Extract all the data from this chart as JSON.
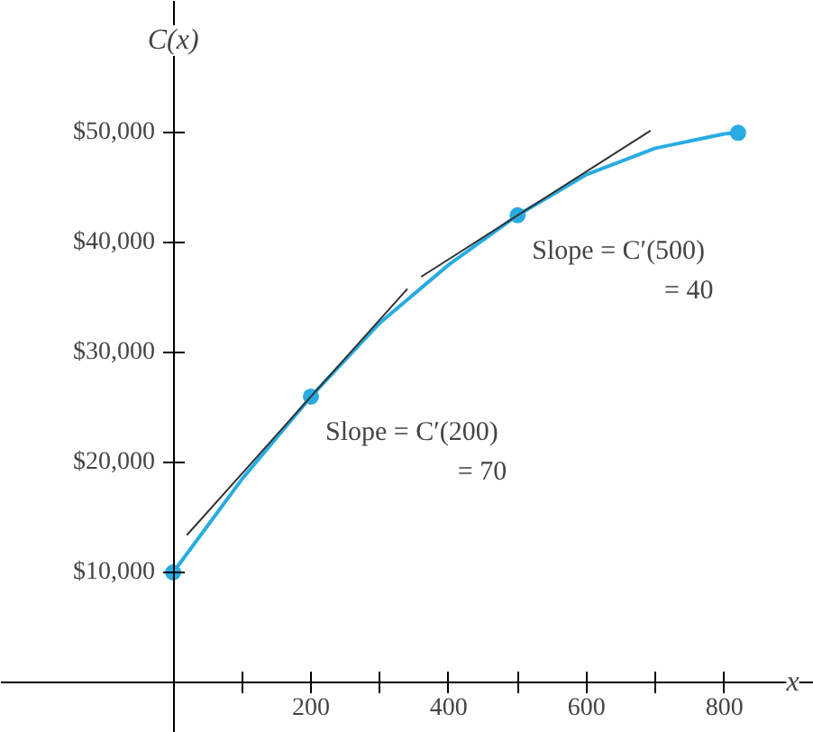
{
  "chart_data": {
    "type": "line",
    "xlabel": "x",
    "ylabel": "C(x)",
    "xlim": [
      -250,
      930
    ],
    "ylim": [
      -4600,
      62000
    ],
    "xticks": [
      {
        "value": 100,
        "label": null
      },
      200,
      {
        "value": 300,
        "label": null
      },
      400,
      {
        "value": 500,
        "label": null
      },
      600,
      {
        "value": 700,
        "label": null
      },
      800
    ],
    "yticks": [
      {
        "value": 10000,
        "label": "$10,000"
      },
      {
        "value": 20000,
        "label": "$20,000"
      },
      {
        "value": 30000,
        "label": "$30,000"
      },
      {
        "value": 40000,
        "label": "$40,000"
      },
      {
        "value": 50000,
        "label": "$50,000"
      }
    ],
    "grid": false,
    "series": [
      {
        "color": "#29abe2",
        "x": [
          0,
          100,
          200,
          300,
          400,
          500,
          600,
          700,
          800,
          820
        ],
        "values": [
          10000,
          18500,
          26000,
          32700,
          38000,
          42500,
          46200,
          48600,
          49900,
          50000
        ]
      },
      {
        "type": "scatter",
        "color": "#29abe2",
        "marker": "circle",
        "x": [
          0,
          200,
          500,
          820
        ],
        "values": [
          10000,
          26000,
          42500,
          50000
        ]
      },
      {
        "color": "#333333",
        "x": [
          20,
          340
        ],
        "values": [
          13400,
          35800
        ]
      },
      {
        "color": "#333333",
        "x": [
          360,
          693
        ],
        "values": [
          36900,
          50200
        ]
      }
    ],
    "annotations": [
      {
        "text": "Slope = C′(200)\n= 70",
        "x": 200,
        "y": 26000
      },
      {
        "text": "Slope = C′(500)\n= 40",
        "x": 500,
        "y": 42500
      }
    ]
  }
}
